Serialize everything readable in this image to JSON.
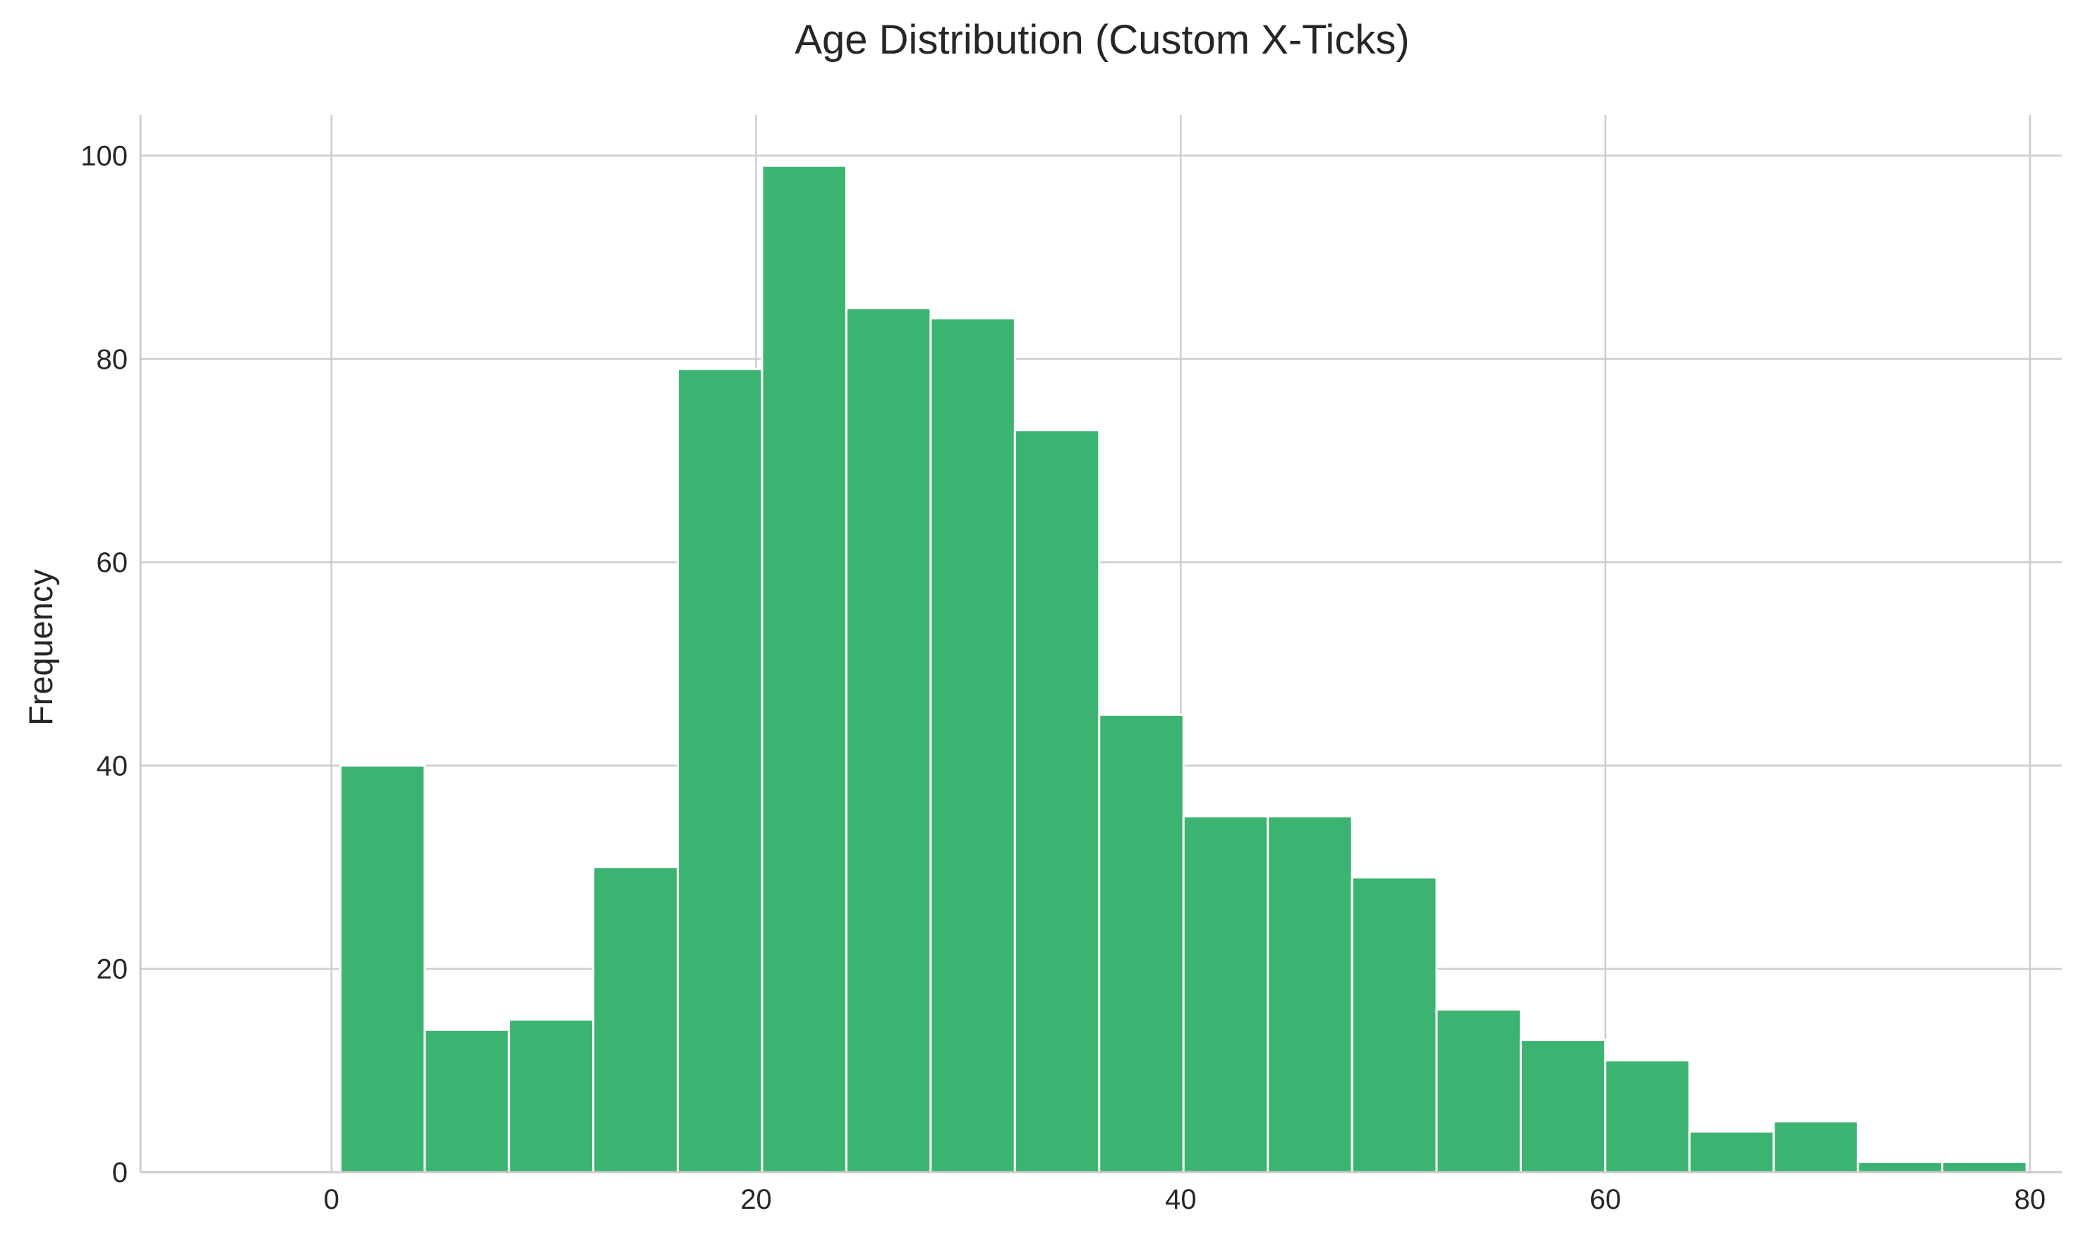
{
  "chart_data": {
    "type": "bar",
    "title": "Age Distribution (Custom X-Ticks)",
    "xlabel": "",
    "ylabel": "Frequency",
    "bar_color": "#3cb371",
    "grid": true,
    "xlim": [
      -9,
      81.5
    ],
    "ylim": [
      0,
      104
    ],
    "x_ticks": [
      0,
      20,
      40,
      60,
      80
    ],
    "y_ticks": [
      0,
      20,
      40,
      60,
      80,
      100
    ],
    "bins": [
      {
        "start": 0.42,
        "end": 4.39,
        "count": 40
      },
      {
        "start": 4.39,
        "end": 8.36,
        "count": 14
      },
      {
        "start": 8.36,
        "end": 12.33,
        "count": 15
      },
      {
        "start": 12.33,
        "end": 16.31,
        "count": 30
      },
      {
        "start": 16.31,
        "end": 20.28,
        "count": 79
      },
      {
        "start": 20.28,
        "end": 24.25,
        "count": 99
      },
      {
        "start": 24.25,
        "end": 28.22,
        "count": 85
      },
      {
        "start": 28.22,
        "end": 32.19,
        "count": 84
      },
      {
        "start": 32.19,
        "end": 36.16,
        "count": 73
      },
      {
        "start": 36.16,
        "end": 40.13,
        "count": 45
      },
      {
        "start": 40.13,
        "end": 44.1,
        "count": 35
      },
      {
        "start": 44.1,
        "end": 48.07,
        "count": 35
      },
      {
        "start": 48.07,
        "end": 52.05,
        "count": 29
      },
      {
        "start": 52.05,
        "end": 56.02,
        "count": 16
      },
      {
        "start": 56.02,
        "end": 59.99,
        "count": 13
      },
      {
        "start": 59.99,
        "end": 63.96,
        "count": 11
      },
      {
        "start": 63.96,
        "end": 67.93,
        "count": 4
      },
      {
        "start": 67.93,
        "end": 71.9,
        "count": 5
      },
      {
        "start": 71.9,
        "end": 75.87,
        "count": 1
      },
      {
        "start": 75.87,
        "end": 79.84,
        "count": 1
      }
    ]
  }
}
